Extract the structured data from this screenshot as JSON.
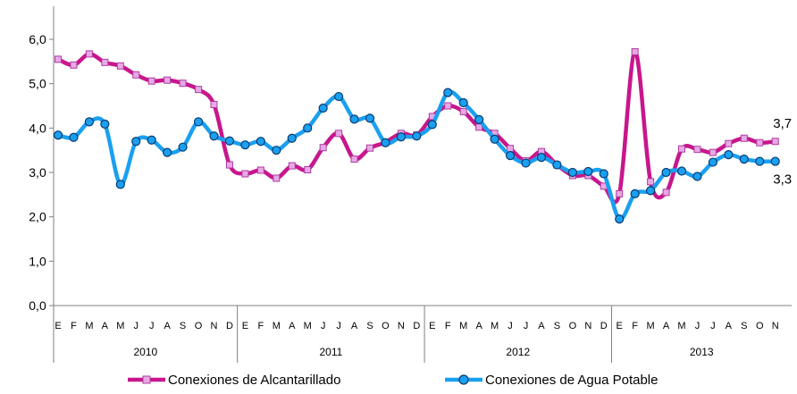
{
  "chart_data": {
    "type": "line",
    "title": "",
    "xlabel": "",
    "ylabel": "",
    "ylim": [
      0,
      6
    ],
    "yticks": [
      "0,0",
      "1,0",
      "2,0",
      "3,0",
      "4,0",
      "5,0",
      "6,0"
    ],
    "grid": false,
    "legend_position": "bottom",
    "years": [
      {
        "label": "2010",
        "months": [
          "E",
          "F",
          "M",
          "A",
          "M",
          "J",
          "J",
          "A",
          "S",
          "O",
          "N",
          "D"
        ]
      },
      {
        "label": "2011",
        "months": [
          "E",
          "F",
          "M",
          "A",
          "M",
          "J",
          "J",
          "A",
          "S",
          "O",
          "N",
          "D"
        ]
      },
      {
        "label": "2012",
        "months": [
          "E",
          "F",
          "M",
          "A",
          "M",
          "J",
          "J",
          "A",
          "S",
          "O",
          "N",
          "D"
        ]
      },
      {
        "label": "2013",
        "months": [
          "E",
          "F",
          "M",
          "A",
          "M",
          "J",
          "J",
          "A",
          "S",
          "O",
          "N"
        ]
      }
    ],
    "series": [
      {
        "name": "Conexiones de Alcantarillado",
        "color": "#c8168c",
        "marker_fill": "#e7a9e4",
        "marker": "square",
        "end_label": "3,7",
        "values": [
          5.55,
          5.42,
          5.67,
          5.48,
          5.4,
          5.2,
          5.06,
          5.08,
          5.01,
          4.87,
          4.53,
          3.17,
          2.97,
          3.05,
          2.87,
          3.15,
          3.06,
          3.56,
          3.88,
          3.3,
          3.55,
          3.68,
          3.88,
          3.84,
          4.26,
          4.5,
          4.37,
          4.02,
          3.88,
          3.54,
          3.26,
          3.47,
          3.17,
          2.93,
          2.93,
          2.69,
          2.52,
          5.72,
          2.79,
          2.55,
          3.53,
          3.52,
          3.45,
          3.65,
          3.77,
          3.67,
          3.7
        ]
      },
      {
        "name": "Conexiones de Agua Potable",
        "color": "#1aa0f0",
        "marker_fill": "#1aa0f0",
        "marker": "circle",
        "end_label": "3,3",
        "values": [
          3.84,
          3.79,
          4.14,
          4.09,
          2.73,
          3.7,
          3.73,
          3.45,
          3.57,
          4.14,
          3.82,
          3.71,
          3.62,
          3.7,
          3.5,
          3.77,
          4.0,
          4.45,
          4.71,
          4.2,
          4.22,
          3.67,
          3.8,
          3.82,
          4.08,
          4.8,
          4.57,
          4.19,
          3.75,
          3.38,
          3.21,
          3.34,
          3.17,
          3.0,
          3.02,
          2.97,
          1.95,
          2.52,
          2.59,
          3.0,
          3.03,
          2.91,
          3.23,
          3.4,
          3.3,
          3.25,
          3.25
        ]
      }
    ]
  }
}
